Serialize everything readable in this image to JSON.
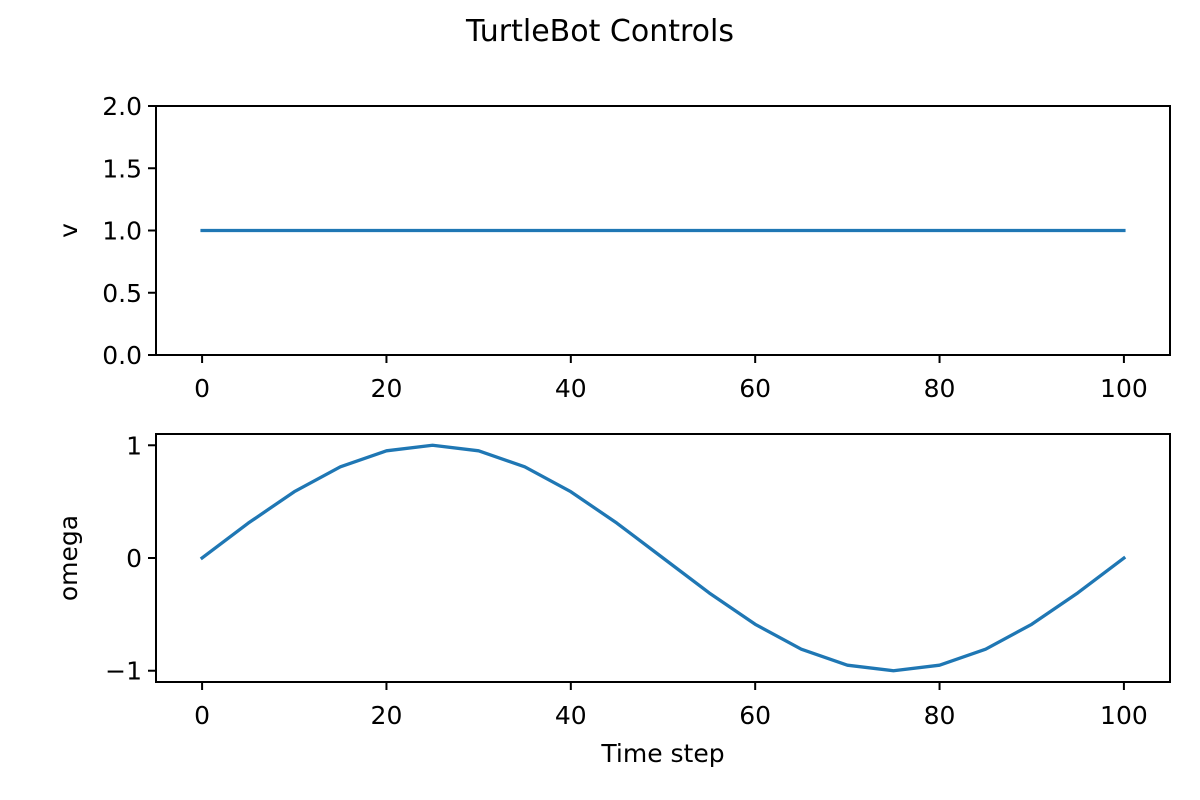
{
  "figure": {
    "title": "TurtleBot Controls"
  },
  "chart_data": [
    {
      "type": "line",
      "title": "",
      "xlabel": "",
      "ylabel": "v",
      "xlim": [
        -5,
        105
      ],
      "ylim": [
        0,
        2
      ],
      "xticks": [
        0,
        20,
        40,
        60,
        80,
        100
      ],
      "xtick_labels": [
        "0",
        "20",
        "40",
        "60",
        "80",
        "100"
      ],
      "yticks": [
        0,
        0.5,
        1,
        1.5,
        2
      ],
      "ytick_labels": [
        "0.0",
        "0.5",
        "1.0",
        "1.5",
        "2.0"
      ],
      "grid": false,
      "series": [
        {
          "color": "#1f77b4",
          "x": [
            0,
            100
          ],
          "y": [
            1.0,
            1.0
          ]
        }
      ]
    },
    {
      "type": "line",
      "title": "",
      "xlabel": "Time step",
      "ylabel": "omega",
      "xlim": [
        -5,
        105
      ],
      "ylim": [
        -1.1,
        1.1
      ],
      "xticks": [
        0,
        20,
        40,
        60,
        80,
        100
      ],
      "xtick_labels": [
        "0",
        "20",
        "40",
        "60",
        "80",
        "100"
      ],
      "yticks": [
        -1,
        0,
        1
      ],
      "ytick_labels": [
        "−1",
        "0",
        "1"
      ],
      "grid": false,
      "series": [
        {
          "color": "#1f77b4",
          "x": [
            0,
            5,
            10,
            15,
            20,
            25,
            30,
            35,
            40,
            45,
            50,
            55,
            60,
            65,
            70,
            75,
            80,
            85,
            90,
            95,
            100
          ],
          "y": [
            0,
            0.309,
            0.588,
            0.809,
            0.951,
            1.0,
            0.951,
            0.809,
            0.588,
            0.309,
            0,
            -0.309,
            -0.588,
            -0.809,
            -0.951,
            -1.0,
            -0.951,
            -0.809,
            -0.588,
            -0.309,
            0
          ]
        }
      ]
    }
  ]
}
